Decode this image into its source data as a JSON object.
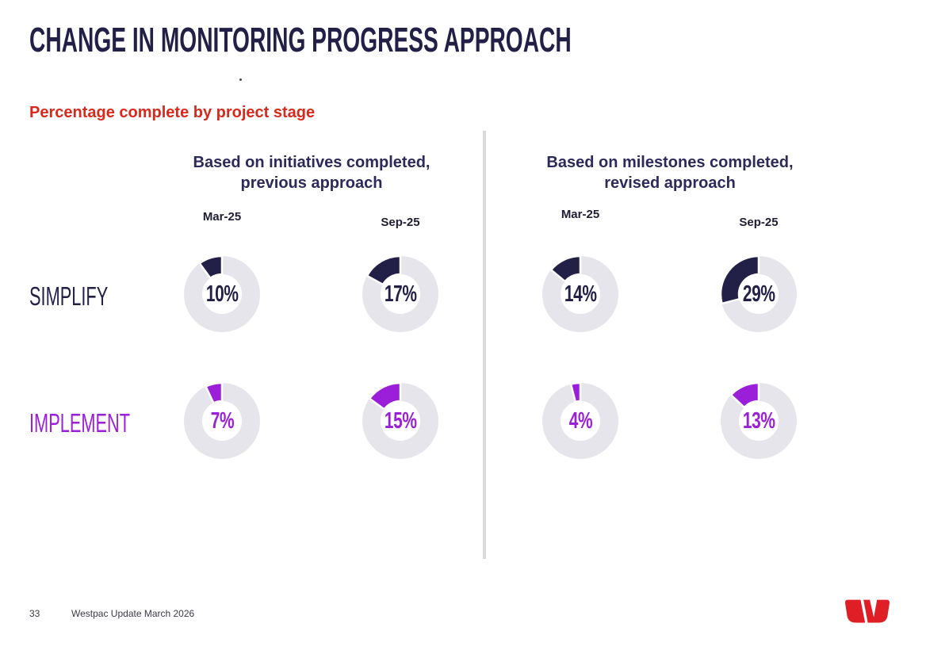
{
  "slide": {
    "title": "CHANGE IN MONITORING PROGRESS APPROACH",
    "subtitle": "Percentage complete by project stage",
    "stray_mark": "."
  },
  "colors": {
    "navy": "#232048",
    "purple": "#9b1fd8",
    "red": "#d8291d",
    "ring_gray": "#e6e5ec",
    "header_navy": "#2d2a5b",
    "logo_red": "#df1e26"
  },
  "groups": [
    {
      "title_line1": "Based on initiatives completed,",
      "title_line2": "previous approach",
      "columns": [
        "Mar-25",
        "Sep-25"
      ]
    },
    {
      "title_line1": "Based on milestones completed,",
      "title_line2": "revised approach",
      "columns": [
        "Mar-25",
        "Sep-25"
      ]
    }
  ],
  "rows": [
    {
      "label": "SIMPLIFY",
      "color": "#232048",
      "cells": [
        {
          "group": 0,
          "column": "Mar-25",
          "value": 10,
          "display": "10%"
        },
        {
          "group": 0,
          "column": "Sep-25",
          "value": 17,
          "display": "17%"
        },
        {
          "group": 1,
          "column": "Mar-25",
          "value": 14,
          "display": "14%"
        },
        {
          "group": 1,
          "column": "Sep-25",
          "value": 29,
          "display": "29%"
        }
      ]
    },
    {
      "label": "IMPLEMENT",
      "color": "#9b1fd8",
      "cells": [
        {
          "group": 0,
          "column": "Mar-25",
          "value": 7,
          "display": "7%"
        },
        {
          "group": 0,
          "column": "Sep-25",
          "value": 15,
          "display": "15%"
        },
        {
          "group": 1,
          "column": "Mar-25",
          "value": 4,
          "display": "4%"
        },
        {
          "group": 1,
          "column": "Sep-25",
          "value": 13,
          "display": "13%"
        }
      ]
    }
  ],
  "chart_data": [
    {
      "type": "pie",
      "subtype": "donut",
      "title": "Based on initiatives completed, previous approach",
      "categories": [
        "Mar-25",
        "Sep-25"
      ],
      "series": [
        {
          "name": "SIMPLIFY",
          "values": [
            10,
            17
          ]
        },
        {
          "name": "IMPLEMENT",
          "values": [
            7,
            15
          ]
        }
      ],
      "unit": "%",
      "direction": "counterclockwise-from-top",
      "legend_position": "none"
    },
    {
      "type": "pie",
      "subtype": "donut",
      "title": "Based on milestones completed, revised approach",
      "categories": [
        "Mar-25",
        "Sep-25"
      ],
      "series": [
        {
          "name": "SIMPLIFY",
          "values": [
            14,
            29
          ]
        },
        {
          "name": "IMPLEMENT",
          "values": [
            4,
            13
          ]
        }
      ],
      "unit": "%",
      "direction": "counterclockwise-from-top",
      "legend_position": "none"
    }
  ],
  "footer": {
    "page_number": "33",
    "doc_title": "Westpac Update March 2026",
    "logo": "westpac-logo"
  }
}
